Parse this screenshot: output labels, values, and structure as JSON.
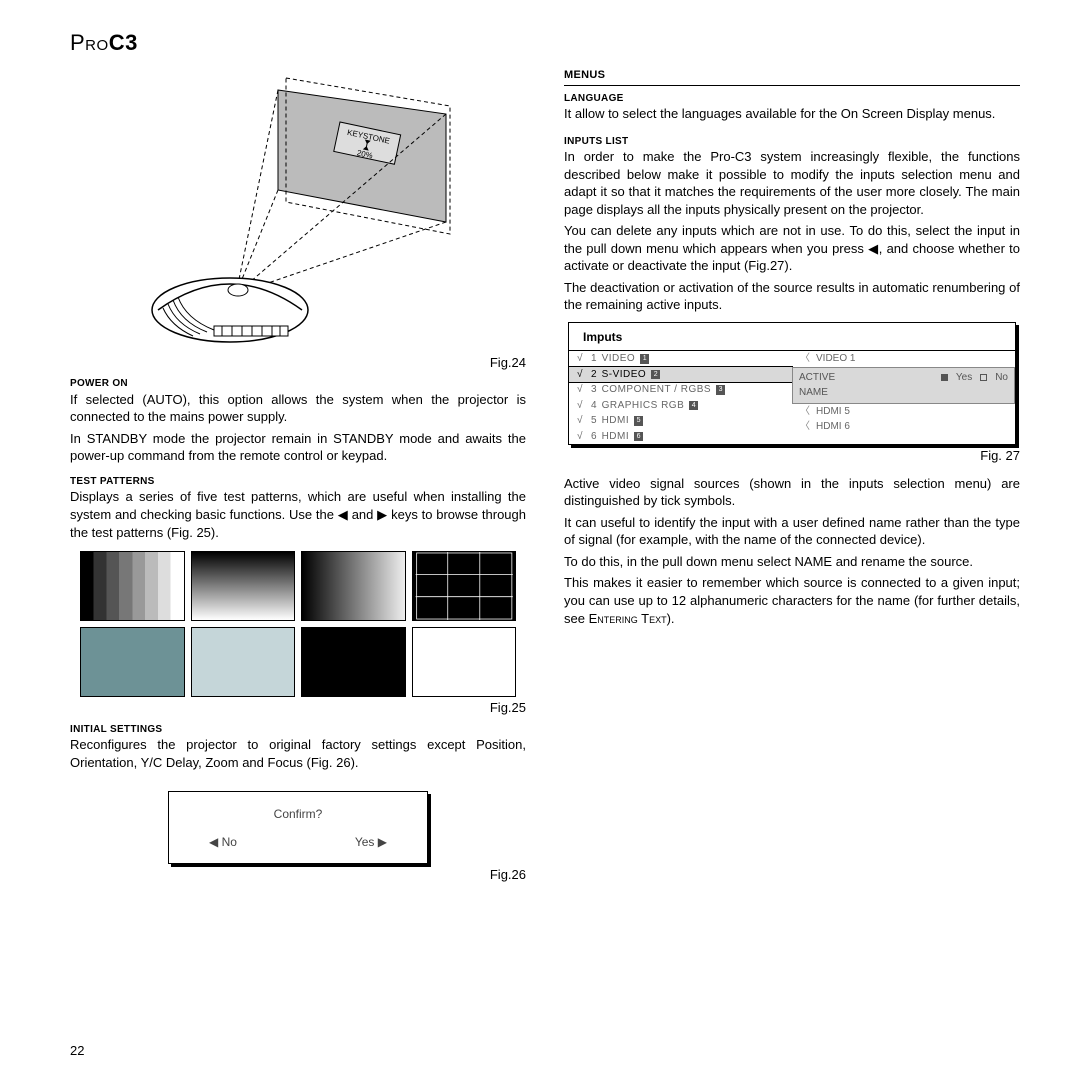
{
  "logo": {
    "pro": "Pro",
    "c3": "C3"
  },
  "page_number": "22",
  "left": {
    "fig24_screen_label": "KEYSTONE",
    "fig24_pct": "20%",
    "fig24_caption": "Fig.24",
    "power_on_h": "POWER ON",
    "power_on_p1": "If selected (AUTO), this option allows the system when the projector is connected to the mains power supply.",
    "power_on_p2": "In STANDBY mode the projector remain in STANDBY mode and awaits the power-up command from the remote control or keypad.",
    "test_patterns_h": "TEST PATTERNS",
    "test_patterns_p": "Displays a series of five test patterns, which are useful when installing the system and checking basic functions. Use the ◀ and ▶ keys to browse through the test patterns (Fig. 25).",
    "fig25_caption": "Fig.25",
    "initial_h": "INITIAL SETTINGS",
    "initial_p": "Reconfigures the projector to original factory settings except Position, Orientation, Y/C Delay, Zoom and Focus (Fig. 26).",
    "confirm_q": "Confirm?",
    "confirm_no": "◀  No",
    "confirm_yes": "Yes ▶",
    "fig26_caption": "Fig.26",
    "tp_colors": {
      "teal": "#6d9296",
      "lblue": "#c5d6d9",
      "black": "#000000",
      "white": "#ffffff"
    }
  },
  "right": {
    "menus_h": "MENUS",
    "language_h": "LANGUAGE",
    "language_p": "It allow to select the languages available for the On Screen Display menus.",
    "inputs_list_h": "INPUTS LIST",
    "inputs_p1": "In order to make the Pro-C3 system increasingly flexible, the functions described below make it possible to modify the inputs selection menu and adapt it so that it matches the requirements of the user more closely. The main page displays all the inputs physically present on the projector.",
    "inputs_p2": "You can delete any inputs which are not in use. To do this, select the input in the pull down menu which appears when you press ◀, and choose whether to activate or deactivate the input (Fig.27).",
    "inputs_p3": "The deactivation or activation of the source results in automatic renumbering of the remaining active inputs.",
    "inputs_box": {
      "title": "Imputs",
      "left_items": [
        {
          "chk": "√",
          "num": "1",
          "label": "VIDEO",
          "badge": "1",
          "sel": false
        },
        {
          "chk": "√",
          "num": "2",
          "label": "S-VIDEO",
          "badge": "2",
          "sel": true
        },
        {
          "chk": "√",
          "num": "3",
          "label": "COMPONENT / RGBS",
          "badge": "3",
          "sel": false
        },
        {
          "chk": "√",
          "num": "4",
          "label": "GRAPHICS RGB",
          "badge": "4",
          "sel": false
        },
        {
          "chk": "√",
          "num": "5",
          "label": "HDMI",
          "badge": "5",
          "sel": false
        },
        {
          "chk": "√",
          "num": "6",
          "label": "HDMI",
          "badge": "6",
          "sel": false
        }
      ],
      "right_top": "VIDEO 1",
      "right_panel": {
        "active": "ACTIVE",
        "yes": "Yes",
        "no": "No",
        "name": "NAME"
      },
      "right_bottom": [
        "HDMI 5",
        "HDMI 6"
      ]
    },
    "fig27_caption": "Fig. 27",
    "after_p1": "Active video signal sources (shown in the inputs selection menu) are distinguished by tick symbols.",
    "after_p2": "It can useful to identify the input with a user defined name rather than the type of signal (for example, with the name of the connected device).",
    "after_p3": "To do this, in the pull down menu select NAME and rename the source.",
    "after_p4_a": "This makes it easier to remember which source is connected to a given input; you can use up to 12 alphanumeric characters for the name (for further details, see ",
    "after_p4_b": "Entering Text",
    "after_p4_c": ")."
  }
}
